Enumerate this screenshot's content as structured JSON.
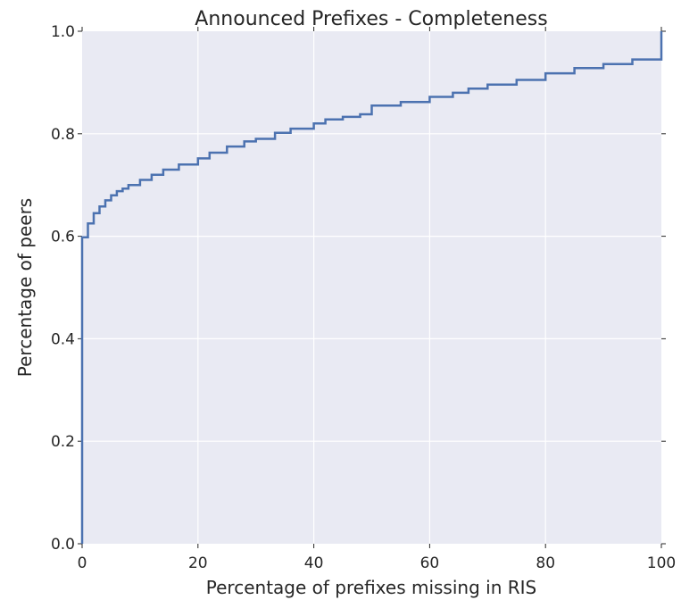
{
  "chart_data": {
    "type": "line",
    "title": "Announced Prefixes - Completeness",
    "xlabel": "Percentage of prefixes missing in RIS",
    "ylabel": "Percentage of peers",
    "xlim": [
      0,
      100
    ],
    "ylim": [
      0,
      1.0
    ],
    "x_ticks": [
      "0",
      "20",
      "40",
      "60",
      "80",
      "100"
    ],
    "y_ticks": [
      "0.0",
      "0.2",
      "0.4",
      "0.6",
      "0.8",
      "1.0"
    ],
    "grid": true,
    "background": "#e9eaf3",
    "series_color": "#4c72b0",
    "series": [
      {
        "x": [
          0,
          0,
          1,
          2,
          3,
          4,
          5,
          6,
          7,
          8,
          10,
          12,
          14,
          16.7,
          20,
          22,
          25,
          28,
          30,
          33.3,
          36,
          40,
          42,
          45,
          48,
          50,
          50,
          55,
          60,
          64,
          66.7,
          70,
          75,
          80,
          85,
          90,
          95,
          100,
          100
        ],
        "y": [
          0,
          0.598,
          0.625,
          0.645,
          0.658,
          0.67,
          0.68,
          0.688,
          0.693,
          0.7,
          0.71,
          0.72,
          0.73,
          0.74,
          0.752,
          0.763,
          0.775,
          0.785,
          0.79,
          0.802,
          0.81,
          0.82,
          0.828,
          0.833,
          0.838,
          0.84,
          0.855,
          0.862,
          0.872,
          0.88,
          0.888,
          0.896,
          0.905,
          0.918,
          0.928,
          0.936,
          0.945,
          0.952,
          1.0
        ]
      }
    ]
  }
}
